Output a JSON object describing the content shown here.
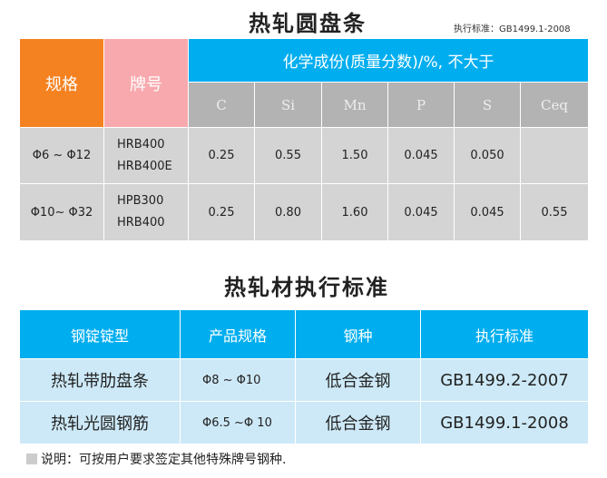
{
  "table1": {
    "title": "热轧圆盘条",
    "standard": "执行标准：GB1499.1-2008",
    "headers": {
      "spec": "规格",
      "grade": "牌号",
      "composition": "化学成份(质量分数)/%, 不大于"
    },
    "elements": [
      "C",
      "Si",
      "Mn",
      "P",
      "S",
      "Ceq"
    ],
    "rows": [
      {
        "spec": "Φ6 ~ Φ12",
        "grades": [
          "HRB400",
          "HRB400E"
        ],
        "values": [
          "0.25",
          "0.55",
          "1.50",
          "0.045",
          "0.050",
          ""
        ]
      },
      {
        "spec": "Φ10~ Φ32",
        "grades": [
          "HPB300",
          "HRB400"
        ],
        "values": [
          "0.25",
          "0.80",
          "1.60",
          "0.045",
          "0.045",
          "0.55"
        ]
      }
    ],
    "colors": {
      "orange": "#f58220",
      "pink": "#f8a9ae",
      "blue": "#00aeef",
      "gray": "#b3b3b3"
    }
  },
  "table2": {
    "title": "热轧材执行标准",
    "headers": [
      "钢锭锭型",
      "产品规格",
      "钢种",
      "执行标准"
    ],
    "rows": [
      [
        "热轧带肋盘条",
        "Φ8 ~ Φ10",
        "低合金钢",
        "GB1499.2-2007"
      ],
      [
        "热轧光圆钢筋",
        "Φ6.5 ~Φ 10",
        "低合金钢",
        "GB1499.1-2008"
      ]
    ]
  },
  "note": "说明：可按用户要求签定其他特殊牌号钢种."
}
